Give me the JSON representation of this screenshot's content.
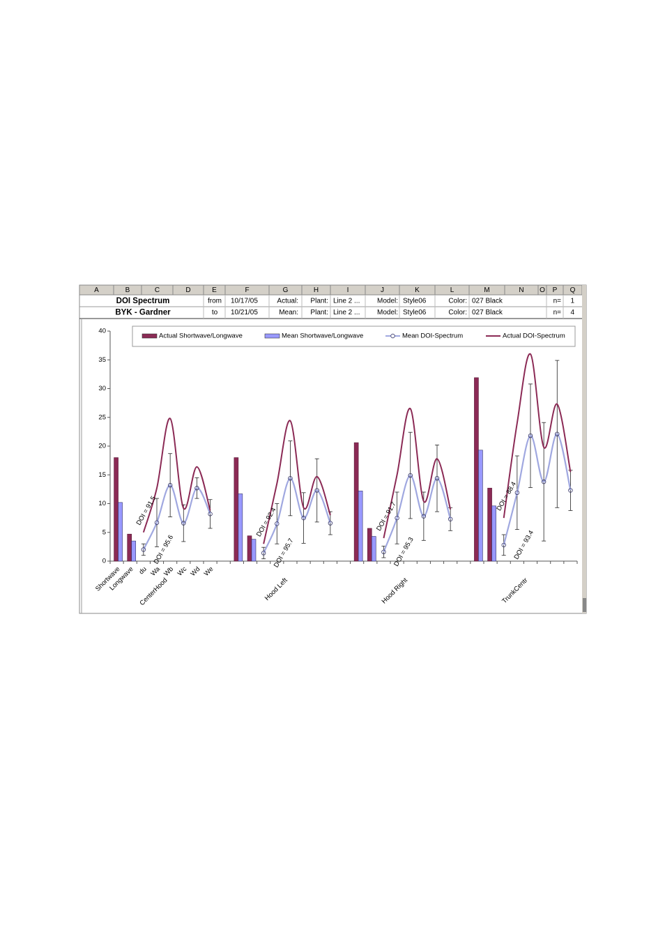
{
  "sheet": {
    "columns": [
      "A",
      "B",
      "C",
      "D",
      "E",
      "F",
      "G",
      "H",
      "I",
      "J",
      "K",
      "L",
      "M",
      "N",
      "O",
      "P",
      "Q"
    ],
    "rows": [
      [
        "DOI Spectrum",
        "from",
        "10/17/05",
        "Actual:",
        "Plant:",
        "Line 2 ...",
        "Model:",
        "Style06",
        "Color:",
        "027 Black",
        "n=",
        "1"
      ],
      [
        "BYK - Gardner",
        "to",
        "10/21/05",
        "Mean:",
        "Plant:",
        "Line 2 ...",
        "Model:",
        "Style06",
        "Color:",
        "027 Black",
        "n=",
        "4"
      ]
    ]
  },
  "chart_data": {
    "type": "bar-line",
    "categories": [
      "Shortwave",
      "Longwave",
      "du",
      "Wa",
      "Wb",
      "Wc",
      "Wd",
      "We",
      null,
      null,
      null,
      null,
      null,
      null,
      null,
      null,
      null,
      null,
      null,
      null,
      null,
      null,
      null,
      null,
      null,
      null,
      null,
      null,
      null,
      null,
      null,
      null,
      null,
      null,
      null
    ],
    "group_labels": [
      "CenterHood",
      "Hood Left",
      "Hood Right",
      "TrunkCentr"
    ],
    "doi_actual_labels": [
      "DOI = 91.5",
      "DOI = 92.4",
      "DOI = 91.7",
      "DOI = 88.4"
    ],
    "doi_mean_labels": [
      "DOI = 95.6",
      "DOI = 95.7",
      "DOI = 95.3",
      "DOI = 93.4"
    ],
    "ylim": [
      0,
      40
    ],
    "yticks": [
      0,
      5,
      10,
      15,
      20,
      25,
      30,
      35,
      40
    ],
    "series": [
      {
        "name": "Actual Shortwave/Longwave",
        "kind": "bar",
        "color": "#8b2a55",
        "values": [
          18,
          4.7,
          null,
          null,
          null,
          null,
          null,
          null,
          null,
          18,
          4.4,
          null,
          null,
          null,
          null,
          null,
          null,
          null,
          20.6,
          5.7,
          null,
          null,
          null,
          null,
          null,
          null,
          null,
          31.9,
          12.7,
          null,
          null,
          null,
          null,
          null,
          null
        ]
      },
      {
        "name": "Mean Shortwave/Longwave",
        "kind": "bar",
        "color": "#9999ff",
        "values": [
          10.2,
          3.5,
          null,
          null,
          null,
          null,
          null,
          null,
          null,
          11.7,
          3.8,
          null,
          null,
          null,
          null,
          null,
          null,
          null,
          12.2,
          4.3,
          null,
          null,
          null,
          null,
          null,
          null,
          null,
          19.3,
          9.6,
          null,
          null,
          null,
          null,
          null,
          null
        ]
      },
      {
        "name": "Mean DOI-Spectrum",
        "kind": "line",
        "color": "#a0a8e0",
        "values": [
          null,
          null,
          2,
          6.7,
          13.2,
          6.6,
          12.7,
          8.2,
          null,
          null,
          null,
          1.4,
          6.5,
          14.4,
          7.5,
          12.3,
          6.6,
          null,
          null,
          null,
          1.6,
          7.5,
          14.9,
          7.8,
          14.4,
          7.3,
          null,
          null,
          null,
          2.8,
          11.9,
          21.8,
          13.8,
          22.1,
          12.3
        ],
        "errors": [
          null,
          null,
          1,
          4.2,
          5.5,
          3.2,
          1.8,
          2.5,
          null,
          null,
          null,
          1,
          3.5,
          6.5,
          4.4,
          5.5,
          2,
          null,
          null,
          null,
          1,
          4.5,
          7.5,
          4.2,
          5.8,
          2,
          null,
          null,
          null,
          1.8,
          6.4,
          9,
          10.3,
          12.8,
          3.5
        ]
      },
      {
        "name": "Actual DOI-Spectrum",
        "kind": "line",
        "color": "#8b2a55",
        "values": [
          null,
          null,
          5,
          12.7,
          24.8,
          9.2,
          16.4,
          8.8,
          null,
          null,
          null,
          3,
          13.5,
          24.4,
          9.3,
          14.7,
          8,
          null,
          null,
          null,
          4,
          15,
          26.5,
          10.4,
          17.8,
          9,
          null,
          null,
          null,
          7.5,
          24,
          36,
          19.8,
          27.3,
          15.5
        ]
      }
    ]
  }
}
